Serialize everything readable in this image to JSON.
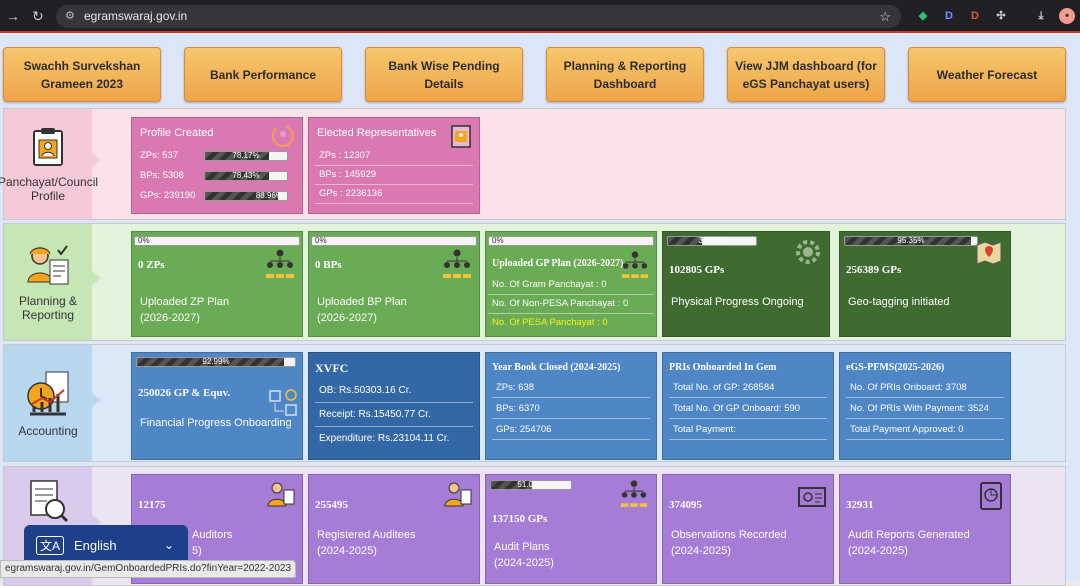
{
  "browser": {
    "url": "egramswaraj.gov.in"
  },
  "nav_buttons": [
    "Swachh Survekshan Grameen 2023",
    "Bank Performance",
    "Bank Wise Pending Details",
    "Planning & Reporting Dashboard",
    "View JJM dashboard (for eGS Panchayat users)",
    "Weather Forecast"
  ],
  "colors": {
    "pink_row": "#fbe1e8",
    "green_row": "#e2f2db",
    "blue_row": "#dbe9f6",
    "purple_row": "#ece4f3",
    "pink_card": "#d978b1",
    "green_card": "#6aab55",
    "dark_green_card": "#3f6b30",
    "blue_card": "#4f86c6",
    "dark_blue_card": "#3467a5",
    "purple_card": "#a57cd6"
  },
  "sections": {
    "profile": {
      "label": "Panchayat/Council Profile"
    },
    "planning": {
      "label": "Planning & Reporting"
    },
    "accounting": {
      "label": "Accounting"
    }
  },
  "profile_created": {
    "title": "Profile Created",
    "zp": "ZPs: 537",
    "zp_pct": "78.17%",
    "zp_val": 78.17,
    "bp": "BPs: 5308",
    "bp_pct": "78.43%",
    "bp_val": 78.43,
    "gp": "GPs: 239190",
    "gp_pct": "88.96%",
    "gp_val": 88.96
  },
  "elected": {
    "title": "Elected Representatives",
    "zp": "ZPs : 12307",
    "bp": "BPs : 145929",
    "gp": "GPs : 2236136"
  },
  "zp_plan": {
    "pct": "0%",
    "pct_val": 0,
    "count": "0 ZPs",
    "label1": "Uploaded ZP Plan",
    "label2": "(2026-2027)"
  },
  "bp_plan": {
    "pct": "0%",
    "pct_val": 0,
    "count": "0 BPs",
    "label1": "Uploaded BP Plan",
    "label2": "(2026-2027)"
  },
  "gp_plan": {
    "pct": "0%",
    "pct_val": 0,
    "title": "Uploaded GP Plan (2026-2027)",
    "l1": "No. Of Gram Panchayat : 0",
    "l2": "No. Of Non-PESA Panchayat : 0",
    "l3": "No. Of PESA Panchayat : 0"
  },
  "physical": {
    "pct": "38.23%",
    "pct_val": 38.23,
    "count": "102805 GPs",
    "label": "Physical Progress Ongoing"
  },
  "geotag": {
    "pct": "95.35%",
    "pct_val": 95.35,
    "count": "256389 GPs",
    "label": "Geo-tagging initiated"
  },
  "financial": {
    "pct": "92.99%",
    "pct_val": 92.99,
    "count": "250026 GP & Equv.",
    "label": "Financial Progress Onboarding"
  },
  "xvfc": {
    "title": "XVFC",
    "ob": "OB: Rs.50303.16 Cr.",
    "receipt": "Receipt: Rs.15450.77 Cr.",
    "exp": "Expenditure: Rs.23104.11 Cr."
  },
  "yearbook": {
    "title": "Year Book Closed (2024-2025)",
    "zp": "ZPs: 638",
    "bp": "BPs: 6370",
    "gp": "GPs: 254706"
  },
  "gem": {
    "title": "PRIs Onboarded In Gem",
    "l1": "Total No. of GP: 268584",
    "l2": "Total No. Of GP Onboard: 590",
    "l3": "Total Payment:"
  },
  "pfms": {
    "title": "eGS-PFMS(2025-2026)",
    "l1": "No. Of PRIs Onboard: 3708",
    "l2": "No. Of PRIs With Payment: 3524",
    "l3": "Total Payment Approved: 0"
  },
  "audit": {
    "c1": {
      "count": "12175",
      "label1": "Auditors",
      "label2": "5)"
    },
    "c2": {
      "count": "255495",
      "label1": "Registered Auditees",
      "label2": "(2024-2025)"
    },
    "c3": {
      "pct": "51.01%",
      "pct_val": 51.01,
      "count": "137150 GPs",
      "label1": "Audit Plans",
      "label2": "(2024-2025)"
    },
    "c4": {
      "count": "374095",
      "label1": "Observations Recorded",
      "label2": "(2024-2025)"
    },
    "c5": {
      "count": "32931",
      "label1": "Audit Reports Generated",
      "label2": "(2024-2025)"
    }
  },
  "language": {
    "selected": "English"
  },
  "status_url": "egramswaraj.gov.in/GemOnboardedPRIs.do?finYear=2022-2023"
}
